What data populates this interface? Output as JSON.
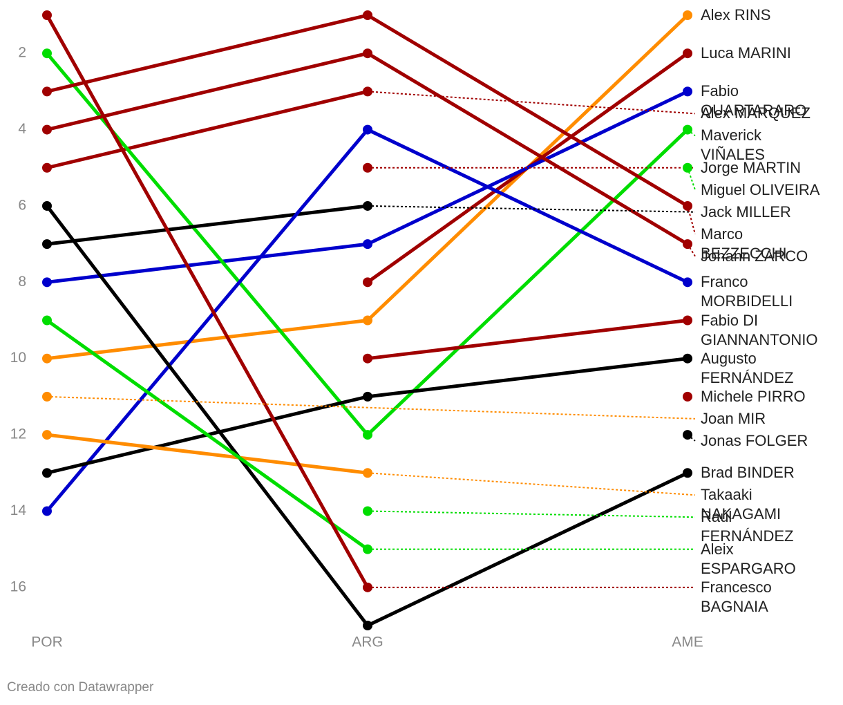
{
  "chart_data": {
    "type": "slope",
    "categories": [
      "POR",
      "ARG",
      "AME"
    ],
    "ylim": [
      1,
      17
    ],
    "y_inverted": true,
    "yticks": [
      2,
      4,
      6,
      8,
      10,
      12,
      14,
      16
    ],
    "footer": "Creado con Datawrapper",
    "series": [
      {
        "name": "Alex RINS",
        "color": "#ff8c00",
        "values": [
          10,
          9,
          1
        ]
      },
      {
        "name": "Luca MARINI",
        "color": "#a00000",
        "values": [
          null,
          8,
          2
        ]
      },
      {
        "name": "Fabio QUARTARARO",
        "color": "#0000cc",
        "values": [
          8,
          7,
          3
        ]
      },
      {
        "name": "Alex MARQUEZ",
        "color": "#a00000",
        "values": [
          5,
          3,
          null
        ]
      },
      {
        "name": "Maverick VIÑALES",
        "color": "#00dd00",
        "values": [
          2,
          12,
          4
        ]
      },
      {
        "name": "Jorge MARTIN",
        "color": "#a00000",
        "values": [
          null,
          5,
          null
        ]
      },
      {
        "name": "Miguel OLIVEIRA",
        "color": "#00dd00",
        "values": [
          null,
          null,
          5
        ]
      },
      {
        "name": "Jack MILLER",
        "color": "#000000",
        "values": [
          7,
          6,
          null
        ]
      },
      {
        "name": "Marco BEZZECCHI",
        "color": "#a00000",
        "values": [
          3,
          1,
          6
        ]
      },
      {
        "name": "Johann ZARCO",
        "color": "#a00000",
        "values": [
          4,
          2,
          7
        ]
      },
      {
        "name": "Franco MORBIDELLI",
        "color": "#0000cc",
        "values": [
          14,
          4,
          8
        ]
      },
      {
        "name": "Fabio DI GIANNANTONIO",
        "color": "#a00000",
        "values": [
          null,
          10,
          9
        ]
      },
      {
        "name": "Augusto FERNÁNDEZ",
        "color": "#000000",
        "values": [
          13,
          11,
          10
        ]
      },
      {
        "name": "Michele PIRRO",
        "color": "#a00000",
        "values": [
          null,
          null,
          11
        ]
      },
      {
        "name": "Joan MIR",
        "color": "#ff8c00",
        "values": [
          11,
          null,
          null
        ]
      },
      {
        "name": "Jonas FOLGER",
        "color": "#000000",
        "values": [
          null,
          null,
          12
        ]
      },
      {
        "name": "Brad BINDER",
        "color": "#000000",
        "values": [
          6,
          17,
          13
        ]
      },
      {
        "name": "Takaaki NAKAGAMI",
        "color": "#ff8c00",
        "values": [
          12,
          13,
          null
        ]
      },
      {
        "name": "Raúl FERNÁNDEZ",
        "color": "#00dd00",
        "values": [
          null,
          14,
          null
        ]
      },
      {
        "name": "Aleix ESPARGARO",
        "color": "#00dd00",
        "values": [
          9,
          15,
          null
        ]
      },
      {
        "name": "Francesco BAGNAIA",
        "color": "#a00000",
        "values": [
          1,
          16,
          null
        ]
      }
    ]
  }
}
